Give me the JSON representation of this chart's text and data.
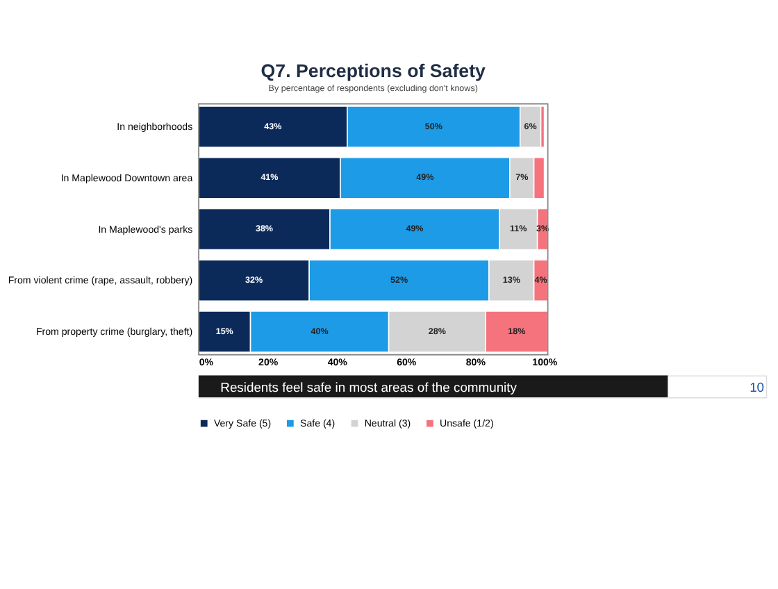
{
  "chart_data": {
    "type": "bar",
    "orientation": "horizontal",
    "stacked": true,
    "title": "Q7. Perceptions of Safety",
    "subtitle": "By percentage of respondents (excluding don't knows)",
    "categories": [
      "In neighborhoods",
      "In Maplewood Downtown area",
      "In Maplewood's parks",
      "From violent crime (rape, assault, robbery)",
      "From property crime (burglary, theft)"
    ],
    "series": [
      {
        "name": "Very Safe (5)",
        "color": "#0b2a5a",
        "values": [
          43,
          41,
          38,
          32,
          15
        ],
        "value_labels": [
          "43%",
          "41%",
          "38%",
          "32%",
          "15%"
        ]
      },
      {
        "name": "Safe (4)",
        "color": "#1e9be6",
        "values": [
          50,
          49,
          49,
          52,
          40
        ],
        "value_labels": [
          "50%",
          "49%",
          "49%",
          "52%",
          "40%"
        ]
      },
      {
        "name": "Neutral (3)",
        "color": "#d3d3d3",
        "values": [
          6,
          7,
          11,
          13,
          28
        ],
        "value_labels": [
          "6%",
          "7%",
          "11%",
          "13%",
          "28%"
        ]
      },
      {
        "name": "Unsafe (1/2)",
        "color": "#f4737c",
        "values": [
          1,
          3,
          3,
          4,
          18
        ],
        "value_labels": [
          null,
          null,
          "3%",
          "4%",
          "18%"
        ]
      }
    ],
    "xlim": [
      0,
      101
    ],
    "xticks": [
      {
        "value": 0,
        "label": "0%"
      },
      {
        "value": 20,
        "label": "20%"
      },
      {
        "value": 40,
        "label": "40%"
      },
      {
        "value": 60,
        "label": "60%"
      },
      {
        "value": 80,
        "label": "80%"
      },
      {
        "value": 100,
        "label": "100%"
      }
    ],
    "grid": false,
    "legend": "bottom",
    "annotations": [
      "Residents feel safe in most areas of the community",
      "10"
    ]
  }
}
